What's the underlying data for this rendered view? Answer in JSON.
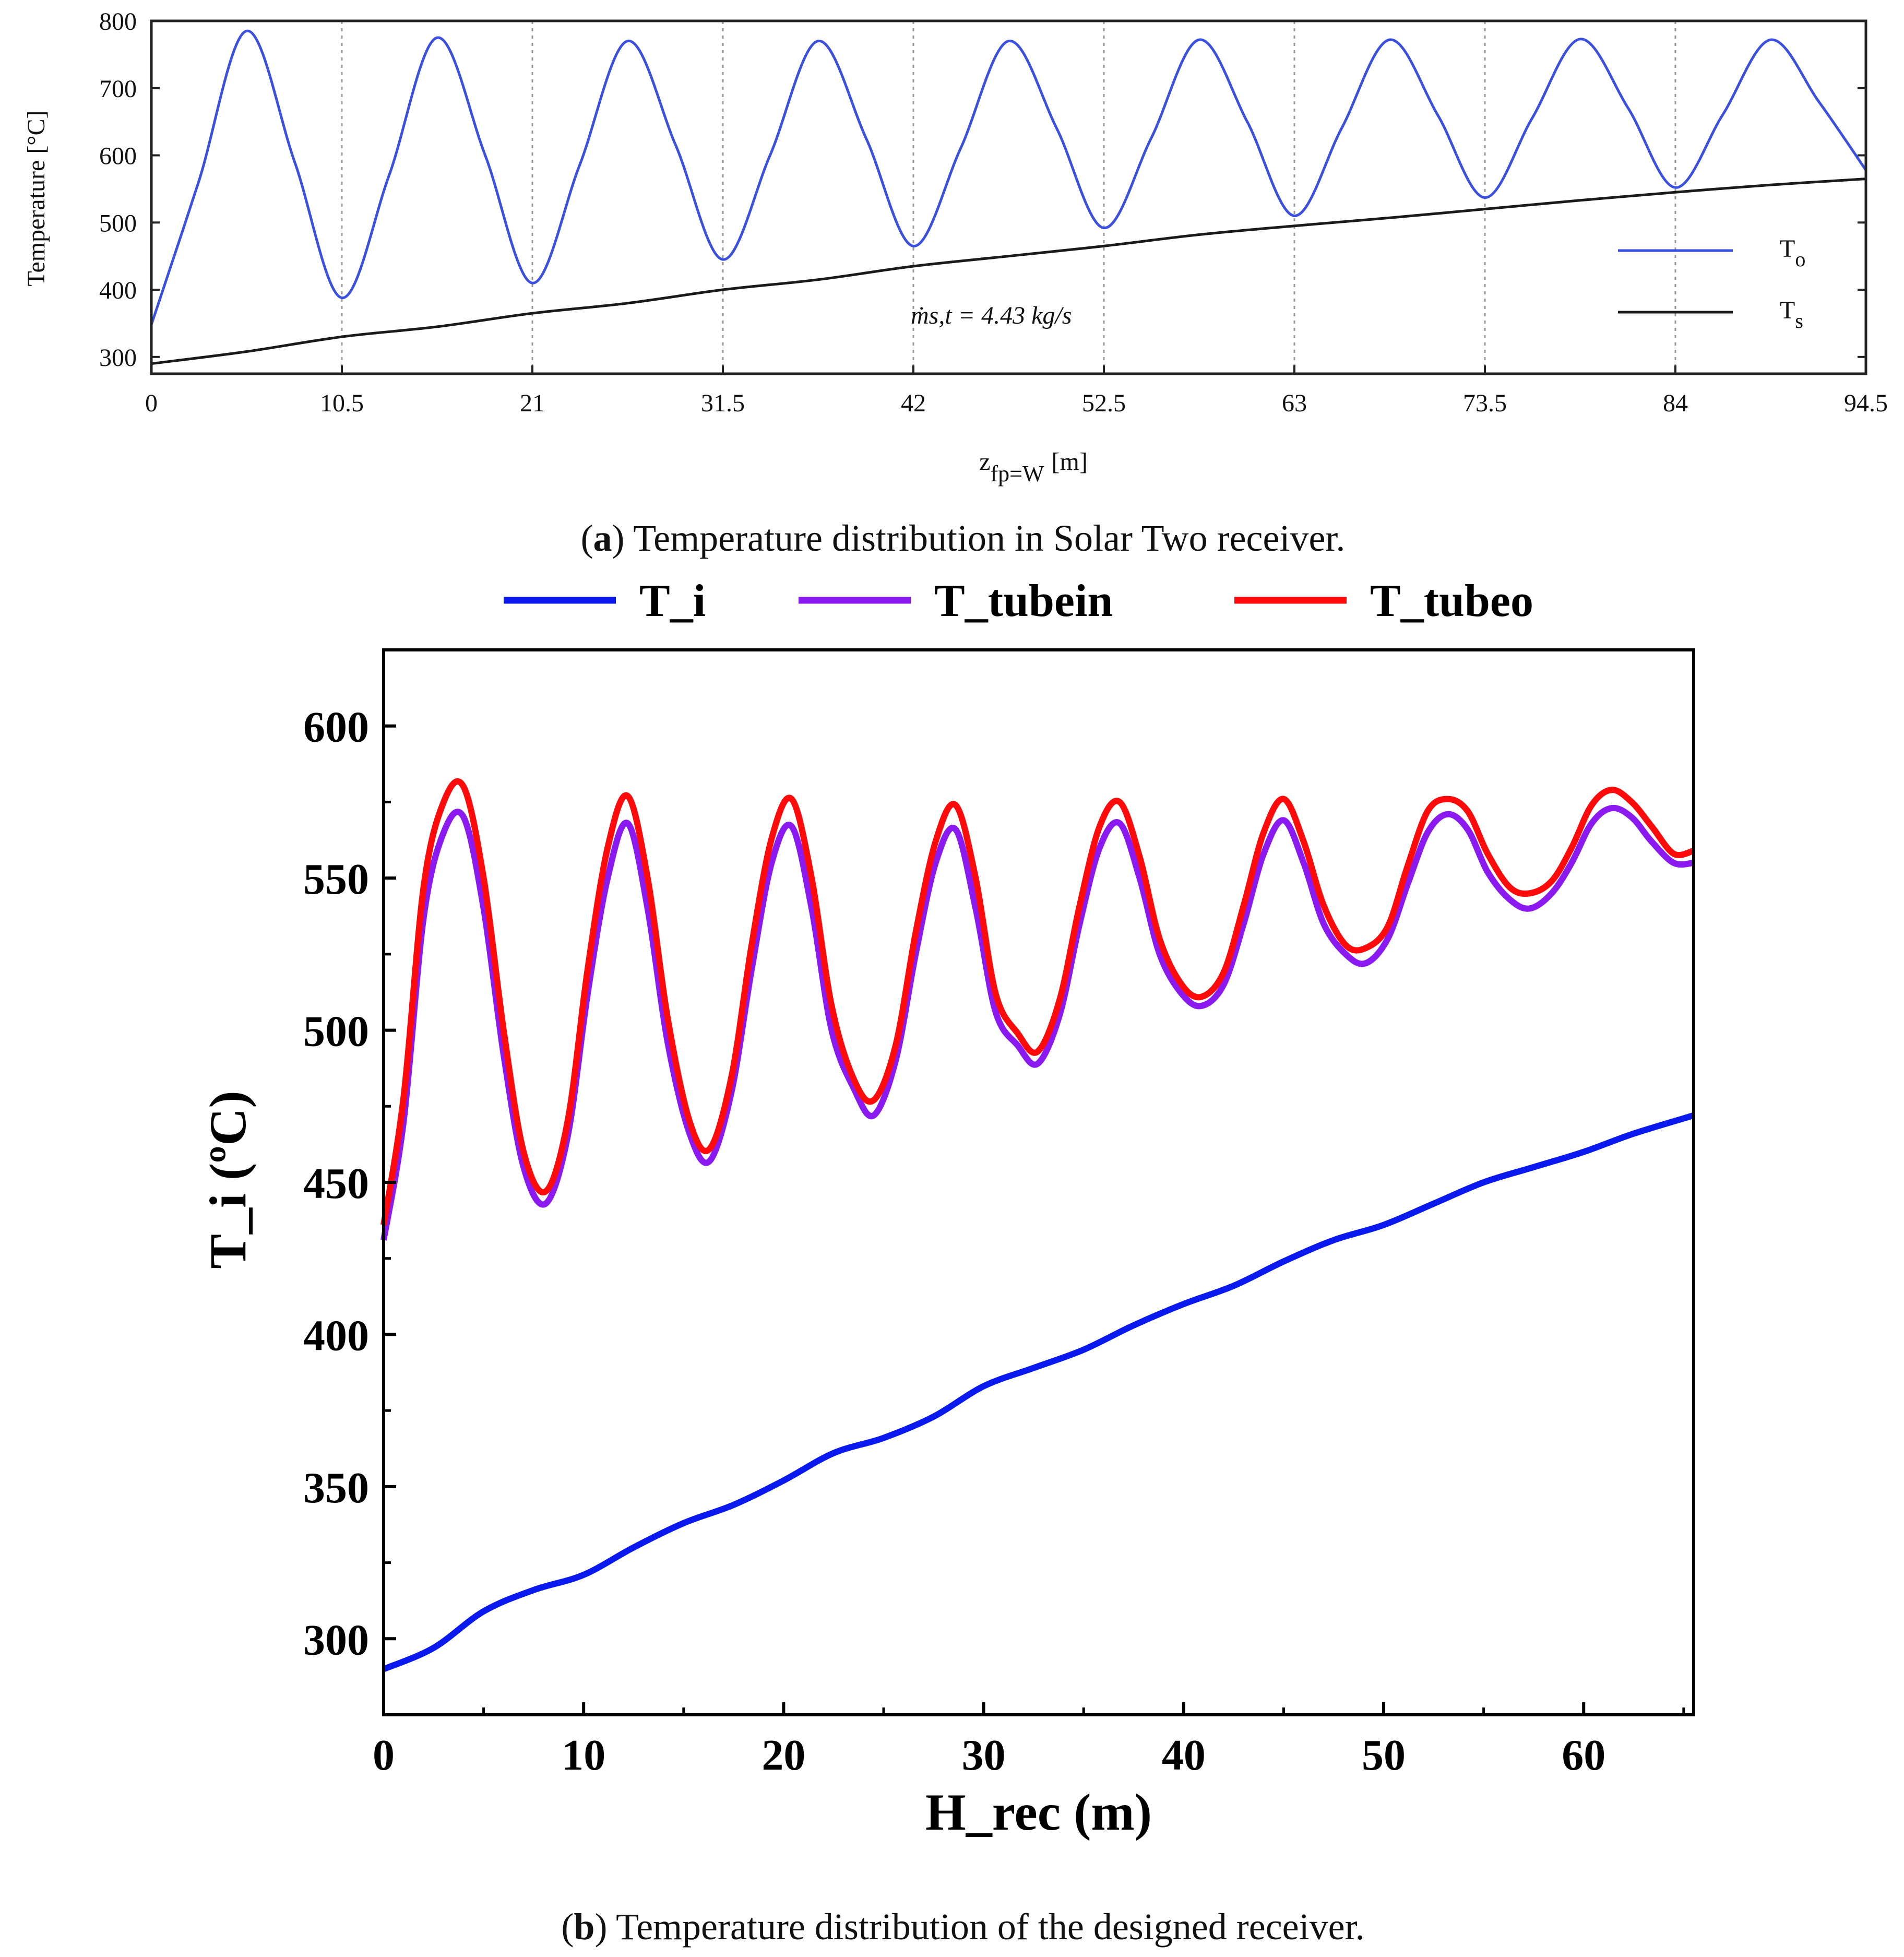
{
  "chart_data": [
    {
      "type": "line",
      "panel": "a",
      "xlabel_main": "z",
      "xlabel_sub": "fp=W",
      "xlabel_unit": "[m]",
      "ylabel": "Temperature [°C]",
      "x_ticks": [
        "0",
        "10.5",
        "21",
        "31.5",
        "42",
        "52.5",
        "63",
        "73.5",
        "84",
        "94.5"
      ],
      "y_ticks": [
        "300",
        "400",
        "500",
        "600",
        "700",
        "800"
      ],
      "xlim": [
        0,
        94.5
      ],
      "ylim": [
        275,
        800
      ],
      "vertical_gridlines": [
        10.5,
        21,
        31.5,
        42,
        52.5,
        63,
        73.5,
        84
      ],
      "annotation": "ṁs,t = 4.43 kg/s",
      "legend": [
        {
          "name": "T",
          "sub": "o",
          "color": "#3b4fe0"
        },
        {
          "name": "T",
          "sub": "s",
          "color": "#1a1a1a"
        }
      ],
      "series": [
        {
          "name": "To",
          "color": "#3b4fe0",
          "x": [
            0,
            2.6,
            5.25,
            7.9,
            10.5,
            13.1,
            15.75,
            18.4,
            21,
            23.6,
            26.25,
            28.9,
            31.5,
            34.1,
            36.75,
            39.4,
            42,
            44.6,
            47.25,
            49.9,
            52.5,
            55.1,
            57.75,
            60.4,
            63,
            65.6,
            68.25,
            70.9,
            73.5,
            76.1,
            78.75,
            81.4,
            84,
            86.6,
            89.25,
            91.9,
            94.5
          ],
          "values": [
            348,
            560,
            785,
            590,
            388,
            570,
            775,
            600,
            410,
            585,
            770,
            615,
            445,
            600,
            770,
            625,
            465,
            610,
            770,
            640,
            492,
            625,
            772,
            650,
            510,
            640,
            772,
            660,
            537,
            655,
            773,
            670,
            552,
            660,
            772,
            680,
            578
          ]
        },
        {
          "name": "Ts",
          "color": "#1a1a1a",
          "x": [
            0,
            5.25,
            10.5,
            15.75,
            21,
            26.25,
            31.5,
            36.75,
            42,
            47.25,
            52.5,
            57.75,
            63,
            68.25,
            73.5,
            78.75,
            84,
            89.25,
            94.5
          ],
          "values": [
            290,
            308,
            330,
            345,
            365,
            380,
            400,
            415,
            435,
            450,
            465,
            482,
            495,
            507,
            520,
            533,
            545,
            556,
            565
          ]
        }
      ],
      "caption_label": "a",
      "caption_text": ") Temperature distribution in Solar Two receiver."
    },
    {
      "type": "line",
      "panel": "b",
      "xlabel": "H_rec (m)",
      "ylabel": "T_i (ºC)",
      "x_ticks": [
        "0",
        "10",
        "20",
        "30",
        "40",
        "50",
        "60"
      ],
      "y_ticks": [
        "300",
        "350",
        "400",
        "450",
        "500",
        "550",
        "600"
      ],
      "xlim": [
        0,
        65.5
      ],
      "ylim": [
        275,
        625
      ],
      "legend": [
        {
          "name": "T_i",
          "color": "#0a1aee"
        },
        {
          "name": "T_tubein",
          "color": "#8a1af0"
        },
        {
          "name": "T_tubeo",
          "color": "#ff0a0a"
        }
      ],
      "series": [
        {
          "name": "T_i",
          "color": "#0a1aee",
          "x": [
            0,
            2.5,
            5,
            7.5,
            10,
            12.5,
            15,
            17.5,
            20,
            22.5,
            25,
            27.5,
            30,
            32.5,
            35,
            37.5,
            40,
            42.5,
            45,
            47.5,
            50,
            52.5,
            55,
            57.5,
            60,
            62.5,
            65.5
          ],
          "values": [
            290,
            297,
            309,
            316,
            321,
            330,
            338,
            344,
            352,
            361,
            366,
            373,
            383,
            389,
            395,
            403,
            410,
            416,
            424,
            431,
            436,
            443,
            450,
            455,
            460,
            466,
            472
          ]
        },
        {
          "name": "T_tubein",
          "color": "#8a1af0",
          "x": [
            0,
            1,
            2,
            3,
            4,
            5,
            6,
            7,
            8.1,
            9.2,
            10.2,
            11.2,
            12.2,
            13.2,
            14.2,
            15.3,
            16.3,
            17.4,
            18.4,
            19.4,
            20.4,
            21.4,
            22.4,
            23.5,
            24.5,
            25.6,
            26.6,
            27.6,
            28.6,
            29.6,
            30.6,
            31.7,
            32.7,
            33.8,
            34.8,
            35.8,
            36.8,
            37.8,
            38.8,
            39.9,
            40.9,
            42,
            43,
            44,
            45,
            46,
            47,
            48.1,
            49.1,
            50.2,
            51.2,
            52.2,
            53.2,
            54.2,
            55.2,
            56.3,
            57.3,
            58.4,
            59.4,
            60.4,
            61.4,
            62.4,
            63.4,
            64.5,
            65.5
          ],
          "values": [
            431,
            470,
            537,
            565,
            570,
            540,
            492,
            455,
            443,
            465,
            512,
            550,
            568,
            540,
            496,
            466,
            457,
            480,
            520,
            555,
            567,
            540,
            500,
            481,
            472,
            490,
            525,
            555,
            566,
            540,
            506,
            495,
            489,
            505,
            535,
            560,
            568,
            550,
            525,
            512,
            508,
            515,
            535,
            558,
            569,
            555,
            535,
            525,
            522,
            530,
            548,
            565,
            571,
            566,
            552,
            543,
            540,
            545,
            555,
            568,
            573,
            570,
            562,
            555,
            555
          ]
        },
        {
          "name": "T_tubeo",
          "color": "#ff0a0a",
          "x": [
            0,
            1,
            2,
            3,
            4,
            5,
            6,
            7,
            8.1,
            9.2,
            10.2,
            11.2,
            12.2,
            13.2,
            14.2,
            15.3,
            16.3,
            17.4,
            18.4,
            19.4,
            20.4,
            21.4,
            22.4,
            23.5,
            24.5,
            25.6,
            26.6,
            27.6,
            28.6,
            29.6,
            30.6,
            31.7,
            32.7,
            33.8,
            34.8,
            35.8,
            36.8,
            37.8,
            38.8,
            39.9,
            40.9,
            42,
            43,
            44,
            45,
            46,
            47,
            48.1,
            49.1,
            50.2,
            51.2,
            52.2,
            53.2,
            54.2,
            55.2,
            56.3,
            57.3,
            58.4,
            59.4,
            60.4,
            61.4,
            62.4,
            63.4,
            64.5,
            65.5
          ],
          "values": [
            436,
            478,
            547,
            575,
            580,
            550,
            500,
            460,
            447,
            470,
            520,
            560,
            577,
            550,
            504,
            470,
            461,
            485,
            528,
            563,
            576,
            550,
            508,
            484,
            477,
            495,
            532,
            562,
            574,
            550,
            512,
            499,
            493,
            510,
            541,
            567,
            575,
            557,
            530,
            515,
            511,
            519,
            541,
            565,
            576,
            562,
            541,
            528,
            527,
            534,
            554,
            572,
            576,
            572,
            558,
            547,
            545,
            549,
            560,
            574,
            579,
            575,
            567,
            558,
            559
          ]
        }
      ],
      "caption_label": "b",
      "caption_text": ") Temperature distribution of the designed receiver."
    }
  ]
}
